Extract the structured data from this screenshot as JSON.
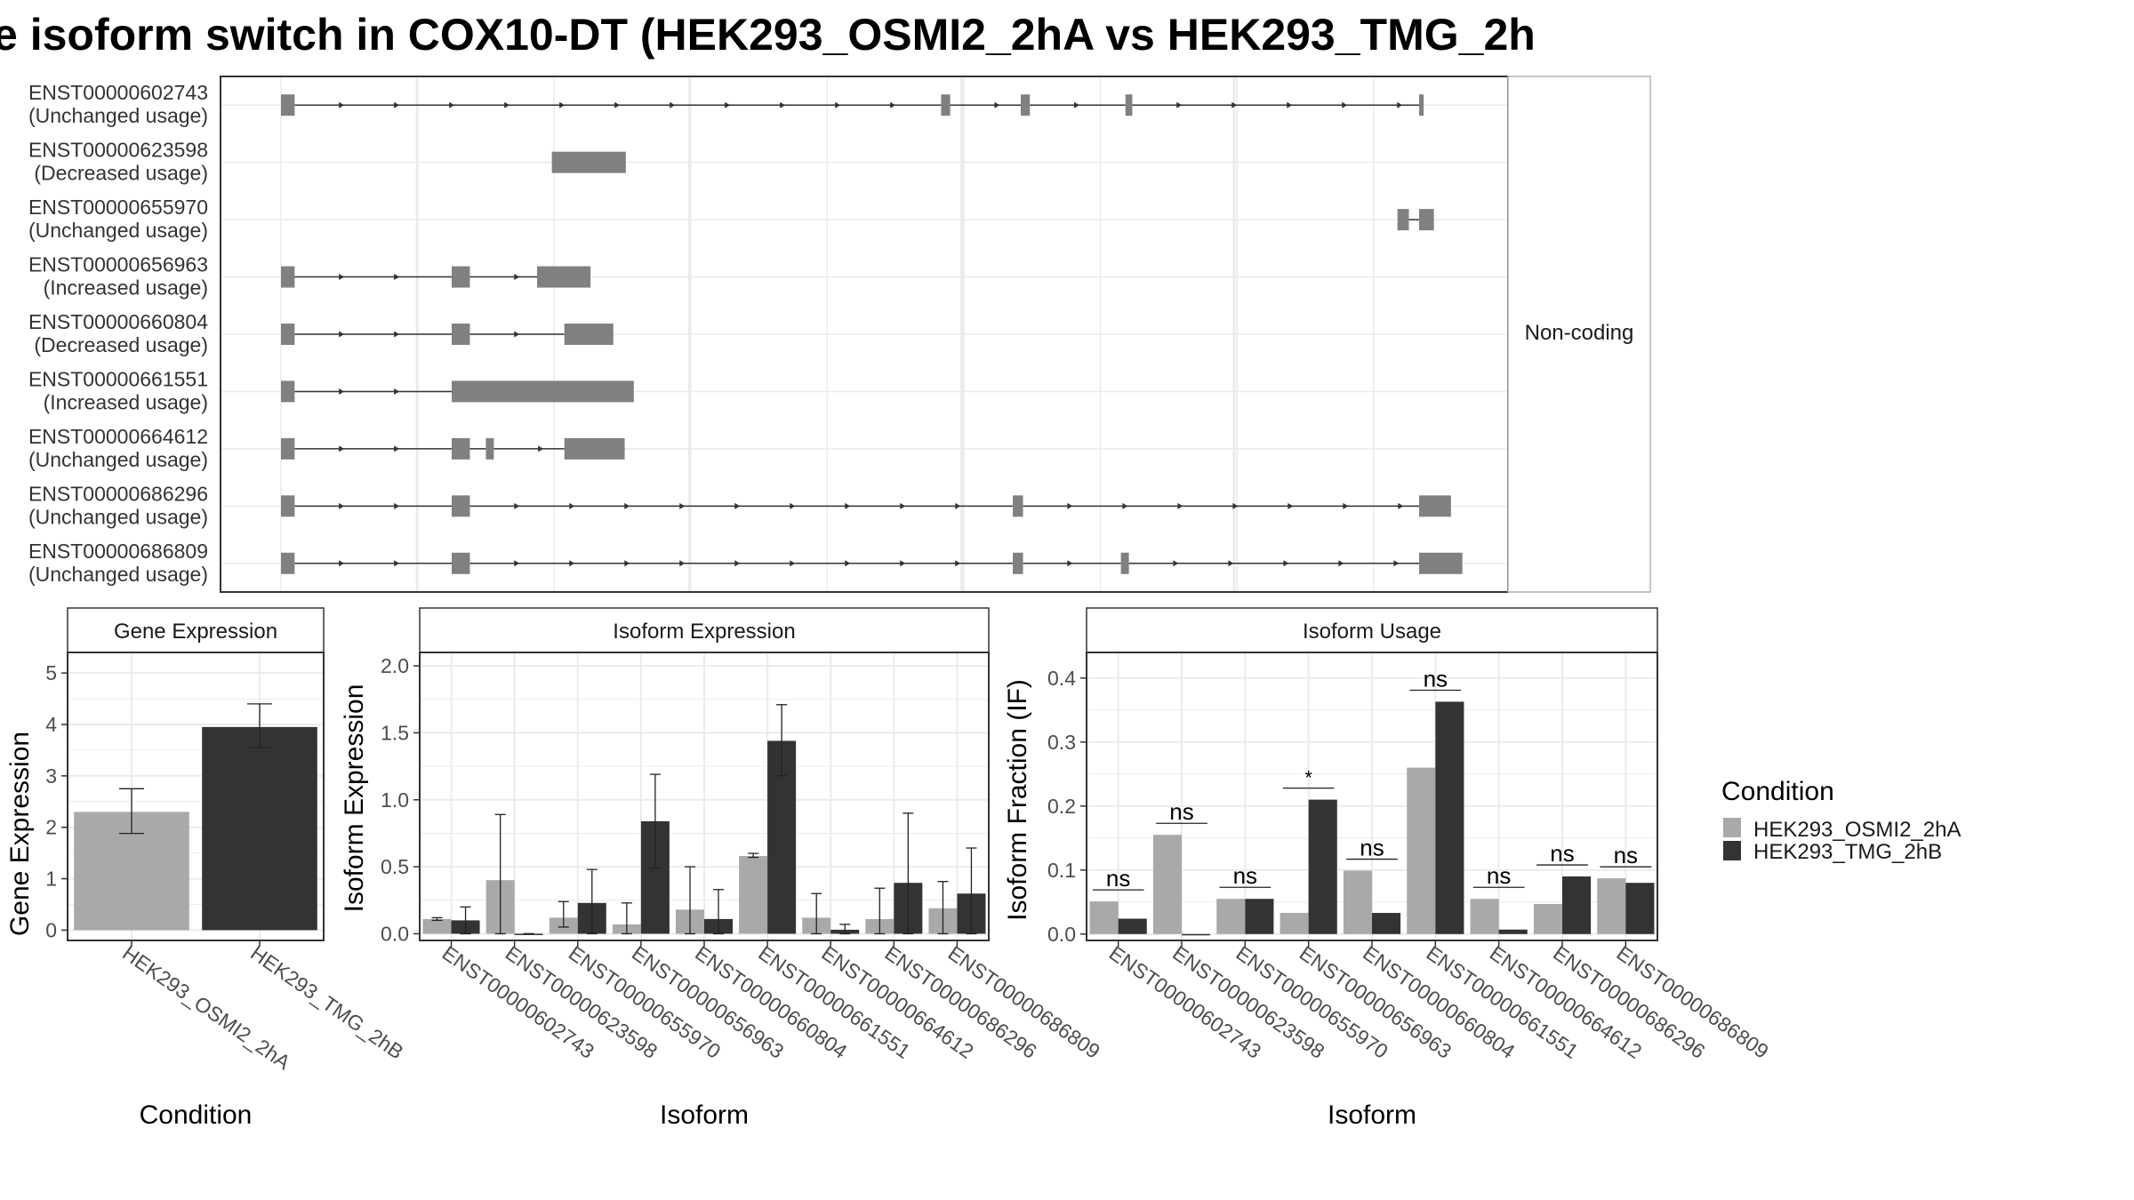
{
  "title": "e isoform switch in COX10-DT (HEK293_OSMI2_2hA vs HEK293_TMG_2h",
  "colors": {
    "light": "#a9a9a9",
    "dark": "#333333",
    "exon": "#808080",
    "grid": "#ebebeb",
    "panel_border": "#333333",
    "strip_bg": "#ffffff"
  },
  "structure": {
    "facet_label": "Non-coding",
    "x_range": [
      0,
      1000
    ],
    "isoforms": [
      {
        "id": "ENST00000602743",
        "usage": "(Unchanged usage)",
        "exons": [
          [
            0,
            12
          ],
          [
            580,
            588
          ],
          [
            650,
            658
          ],
          [
            742,
            748
          ],
          [
            1000,
            1004
          ]
        ]
      },
      {
        "id": "ENST00000623598",
        "usage": "(Decreased usage)",
        "exons": [
          [
            238,
            303
          ]
        ]
      },
      {
        "id": "ENST00000655970",
        "usage": "(Unchanged usage)",
        "exons": [
          [
            981,
            991
          ],
          [
            1000,
            1013
          ]
        ]
      },
      {
        "id": "ENST00000656963",
        "usage": "(Increased usage)",
        "exons": [
          [
            0,
            12
          ],
          [
            150,
            166
          ],
          [
            225,
            272
          ]
        ]
      },
      {
        "id": "ENST00000660804",
        "usage": "(Decreased usage)",
        "exons": [
          [
            0,
            12
          ],
          [
            150,
            166
          ],
          [
            249,
            292
          ]
        ]
      },
      {
        "id": "ENST00000661551",
        "usage": "(Increased usage)",
        "exons": [
          [
            0,
            12
          ],
          [
            150,
            310
          ]
        ]
      },
      {
        "id": "ENST00000664612",
        "usage": "(Unchanged usage)",
        "exons": [
          [
            0,
            12
          ],
          [
            150,
            166
          ],
          [
            180,
            187
          ],
          [
            249,
            302
          ]
        ]
      },
      {
        "id": "ENST00000686296",
        "usage": "(Unchanged usage)",
        "exons": [
          [
            0,
            12
          ],
          [
            150,
            166
          ],
          [
            643,
            652
          ],
          [
            1000,
            1028
          ]
        ]
      },
      {
        "id": "ENST00000686809",
        "usage": "(Unchanged usage)",
        "exons": [
          [
            0,
            12
          ],
          [
            150,
            166
          ],
          [
            643,
            652
          ],
          [
            738,
            745
          ],
          [
            1000,
            1038
          ]
        ]
      }
    ]
  },
  "chart_data": [
    {
      "type": "bar",
      "title": "Gene Expression",
      "xlabel": "Condition",
      "ylabel": "Gene Expression",
      "categories": [
        "HEK293_OSMI2_2hA",
        "HEK293_TMG_2hB"
      ],
      "values": [
        2.3,
        3.95
      ],
      "err_low": [
        1.88,
        3.55
      ],
      "err_high": [
        2.75,
        4.4
      ],
      "ylim": [
        -0.2,
        5.4
      ],
      "yticks": [
        0,
        1,
        2,
        3,
        4,
        5
      ],
      "ytick_labels": [
        "0",
        "1",
        "2",
        "3",
        "4",
        "5"
      ]
    },
    {
      "type": "bar",
      "title": "Isoform Expression",
      "xlabel": "Isoform",
      "ylabel": "Isoform Expression",
      "categories": [
        "ENST00000602743",
        "ENST00000623598",
        "ENST00000655970",
        "ENST00000656963",
        "ENST00000660804",
        "ENST00000661551",
        "ENST00000664612",
        "ENST00000686296",
        "ENST00000686809"
      ],
      "series": [
        {
          "name": "HEK293_OSMI2_2hA",
          "values": [
            0.11,
            0.4,
            0.12,
            0.07,
            0.18,
            0.58,
            0.12,
            0.11,
            0.19
          ],
          "err_low": [
            0.1,
            0.0,
            0.05,
            0.0,
            0.0,
            0.57,
            0.0,
            0.0,
            0.0
          ],
          "err_high": [
            0.12,
            0.89,
            0.24,
            0.23,
            0.5,
            0.6,
            0.3,
            0.34,
            0.39
          ]
        },
        {
          "name": "HEK293_TMG_2hB",
          "values": [
            0.1,
            0.0,
            0.23,
            0.84,
            0.11,
            1.44,
            0.03,
            0.38,
            0.3
          ],
          "err_low": [
            0.0,
            0.0,
            0.0,
            0.49,
            0.0,
            1.18,
            0.0,
            0.0,
            0.0
          ],
          "err_high": [
            0.2,
            0.0,
            0.48,
            1.19,
            0.33,
            1.71,
            0.07,
            0.9,
            0.64
          ]
        }
      ],
      "ylim": [
        -0.05,
        2.1
      ],
      "yticks": [
        0,
        0.5,
        1,
        1.5,
        2
      ],
      "ytick_labels": [
        "0.0",
        "0.5",
        "1.0",
        "1.5",
        "2.0"
      ]
    },
    {
      "type": "bar",
      "title": "Isoform Usage",
      "xlabel": "Isoform",
      "ylabel": "Isoform Fraction (IF)",
      "categories": [
        "ENST00000602743",
        "ENST00000623598",
        "ENST00000655970",
        "ENST00000656963",
        "ENST00000660804",
        "ENST00000661551",
        "ENST00000664612",
        "ENST00000686296",
        "ENST00000686809"
      ],
      "series": [
        {
          "name": "HEK293_OSMI2_2hA",
          "values": [
            0.051,
            0.155,
            0.055,
            0.033,
            0.099,
            0.26,
            0.055,
            0.047,
            0.087
          ]
        },
        {
          "name": "HEK293_TMG_2hB",
          "values": [
            0.024,
            0.0,
            0.055,
            0.21,
            0.033,
            0.363,
            0.007,
            0.09,
            0.08
          ]
        }
      ],
      "significance": [
        "ns",
        "ns",
        "ns",
        "*",
        "ns",
        "ns",
        "ns",
        "ns",
        "ns"
      ],
      "ylim": [
        -0.01,
        0.44
      ],
      "yticks": [
        0,
        0.1,
        0.2,
        0.3,
        0.4
      ],
      "ytick_labels": [
        "0.0",
        "0.1",
        "0.2",
        "0.3",
        "0.4"
      ]
    }
  ],
  "legend": {
    "title": "Condition",
    "items": [
      "HEK293_OSMI2_2hA",
      "HEK293_TMG_2hB"
    ]
  }
}
